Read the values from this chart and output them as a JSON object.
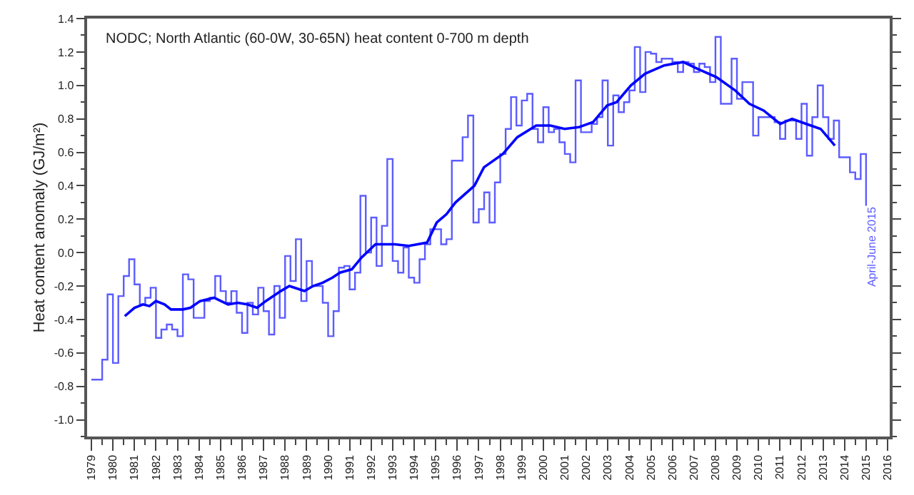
{
  "chart_data": {
    "type": "step",
    "title": "NODC; North Atlantic (60-0W, 30-65N) heat content 0-700 m depth",
    "ylabel": "Heat content anomaly (GJ/m²)",
    "xlim": [
      1978.8,
      2016.1
    ],
    "xticks": [
      1979,
      1980,
      1981,
      1982,
      1983,
      1984,
      1985,
      1986,
      1987,
      1988,
      1989,
      1990,
      1991,
      1992,
      1993,
      1994,
      1995,
      1996,
      1997,
      1998,
      1999,
      2000,
      2001,
      2002,
      2003,
      2004,
      2005,
      2006,
      2007,
      2008,
      2009,
      2010,
      2011,
      2012,
      2013,
      2014,
      2015,
      2016
    ],
    "ylim": [
      -1.1,
      1.4
    ],
    "yticks": [
      {
        "value": -1.0,
        "label": "-1.0"
      },
      -0.8,
      -0.6,
      -0.4,
      -0.2,
      {
        "value": 0,
        "label": "0.0"
      },
      0.2,
      0.4,
      0.6,
      0.8,
      {
        "value": 1.0,
        "label": "1.0"
      },
      1.2,
      1.4
    ],
    "annotations": [
      "April-June 2015"
    ],
    "series": [
      {
        "color": "#5c5cff",
        "x": [
          1979,
          1979.25,
          1979.5,
          1979.75,
          1980,
          1980.25,
          1980.5,
          1980.75,
          1981,
          1981.25,
          1981.5,
          1981.75,
          1982,
          1982.25,
          1982.5,
          1982.75,
          1983,
          1983.25,
          1983.5,
          1983.75,
          1984,
          1984.25,
          1984.5,
          1984.75,
          1985,
          1985.25,
          1985.5,
          1985.75,
          1986,
          1986.25,
          1986.5,
          1986.75,
          1987,
          1987.25,
          1987.5,
          1987.75,
          1988,
          1988.25,
          1988.5,
          1988.75,
          1989,
          1989.25,
          1989.5,
          1989.75,
          1990,
          1990.25,
          1990.5,
          1990.75,
          1991,
          1991.25,
          1991.5,
          1991.75,
          1992,
          1992.25,
          1992.5,
          1992.75,
          1993,
          1993.25,
          1993.5,
          1993.75,
          1994,
          1994.25,
          1994.5,
          1994.75,
          1995,
          1995.25,
          1995.5,
          1995.75,
          1996,
          1996.25,
          1996.5,
          1996.75,
          1997,
          1997.25,
          1997.5,
          1997.75,
          1998,
          1998.25,
          1998.5,
          1998.75,
          1999,
          1999.25,
          1999.5,
          1999.75,
          2000,
          2000.25,
          2000.5,
          2000.75,
          2001,
          2001.25,
          2001.5,
          2001.75,
          2002,
          2002.25,
          2002.5,
          2002.75,
          2003,
          2003.25,
          2003.5,
          2003.75,
          2004,
          2004.25,
          2004.5,
          2004.75,
          2005,
          2005.25,
          2005.5,
          2005.75,
          2006,
          2006.25,
          2006.5,
          2006.75,
          2007,
          2007.25,
          2007.5,
          2007.75,
          2008,
          2008.25,
          2008.5,
          2008.75,
          2009,
          2009.25,
          2009.5,
          2009.75,
          2010,
          2010.25,
          2010.5,
          2010.75,
          2011,
          2011.25,
          2011.5,
          2011.75,
          2012,
          2012.25,
          2012.5,
          2012.75,
          2013,
          2013.25,
          2013.5,
          2013.75,
          2014,
          2014.25,
          2014.5,
          2014.75,
          2015
        ],
        "values": [
          -0.76,
          -0.76,
          -0.64,
          -0.25,
          -0.66,
          -0.26,
          -0.14,
          -0.04,
          -0.19,
          -0.31,
          -0.27,
          -0.21,
          -0.51,
          -0.46,
          -0.43,
          -0.46,
          -0.5,
          -0.13,
          -0.16,
          -0.39,
          -0.39,
          -0.29,
          -0.27,
          -0.14,
          -0.23,
          -0.3,
          -0.23,
          -0.36,
          -0.48,
          -0.3,
          -0.37,
          -0.21,
          -0.35,
          -0.49,
          -0.2,
          -0.39,
          -0.02,
          -0.17,
          0.08,
          -0.29,
          -0.05,
          -0.2,
          -0.2,
          -0.3,
          -0.5,
          -0.35,
          -0.09,
          -0.08,
          -0.22,
          -0.12,
          0.34,
          0.0,
          0.21,
          -0.08,
          0.16,
          0.56,
          -0.05,
          -0.12,
          0.03,
          -0.15,
          -0.18,
          -0.04,
          0.05,
          0.14,
          0.14,
          0.05,
          0.08,
          0.55,
          0.55,
          0.69,
          0.82,
          0.18,
          0.26,
          0.36,
          0.18,
          0.42,
          0.59,
          0.74,
          0.93,
          0.76,
          0.91,
          0.95,
          0.74,
          0.66,
          0.87,
          0.72,
          0.74,
          0.66,
          0.59,
          0.54,
          1.03,
          0.72,
          0.72,
          0.77,
          0.81,
          1.03,
          0.64,
          0.94,
          0.84,
          0.9,
          0.97,
          1.23,
          0.96,
          1.2,
          1.19,
          1.14,
          1.16,
          1.16,
          1.14,
          1.08,
          1.14,
          1.13,
          1.08,
          1.13,
          1.11,
          1.02,
          1.29,
          0.89,
          0.89,
          1.16,
          0.92,
          1.02,
          1.02,
          0.7,
          0.81,
          0.81,
          0.81,
          0.78,
          0.68,
          0.79,
          0.79,
          0.68,
          0.89,
          0.58,
          0.81,
          1.0,
          0.81,
          0.68,
          0.79,
          0.57,
          0.57,
          0.48,
          0.44,
          0.59,
          0.28
        ]
      },
      {
        "type": "line",
        "color": "#0000ff",
        "x": [
          1980.55,
          1981.0,
          1981.4,
          1981.7,
          1982.0,
          1982.4,
          1982.7,
          1983.25,
          1983.6,
          1984.05,
          1984.7,
          1985.35,
          1985.8,
          1986.25,
          1986.7,
          1987.1,
          1987.8,
          1988.2,
          1988.9,
          1989.3,
          1989.75,
          1990.2,
          1990.55,
          1991.1,
          1991.55,
          1992.2,
          1993.1,
          1993.75,
          1994.6,
          1995.05,
          1995.5,
          1995.92,
          1996.8,
          1997.24,
          1998.12,
          1998.79,
          1999.67,
          2000.33,
          2000.99,
          2001.65,
          2002.31,
          2002.97,
          2003.41,
          2004.07,
          2004.73,
          2005.62,
          2006.5,
          2007.16,
          2008.04,
          2008.92,
          2009.58,
          2010.24,
          2011.01,
          2011.56,
          2012.22,
          2012.89,
          2013.55
        ],
        "values": [
          -0.38,
          -0.33,
          -0.31,
          -0.32,
          -0.29,
          -0.31,
          -0.34,
          -0.34,
          -0.33,
          -0.29,
          -0.27,
          -0.31,
          -0.3,
          -0.31,
          -0.33,
          -0.29,
          -0.23,
          -0.2,
          -0.23,
          -0.2,
          -0.18,
          -0.15,
          -0.12,
          -0.1,
          -0.03,
          0.05,
          0.05,
          0.04,
          0.06,
          0.18,
          0.23,
          0.3,
          0.4,
          0.51,
          0.59,
          0.69,
          0.76,
          0.76,
          0.74,
          0.75,
          0.78,
          0.88,
          0.9,
          1.0,
          1.07,
          1.12,
          1.14,
          1.1,
          1.05,
          0.97,
          0.89,
          0.85,
          0.77,
          0.8,
          0.77,
          0.74,
          0.64
        ]
      }
    ]
  }
}
